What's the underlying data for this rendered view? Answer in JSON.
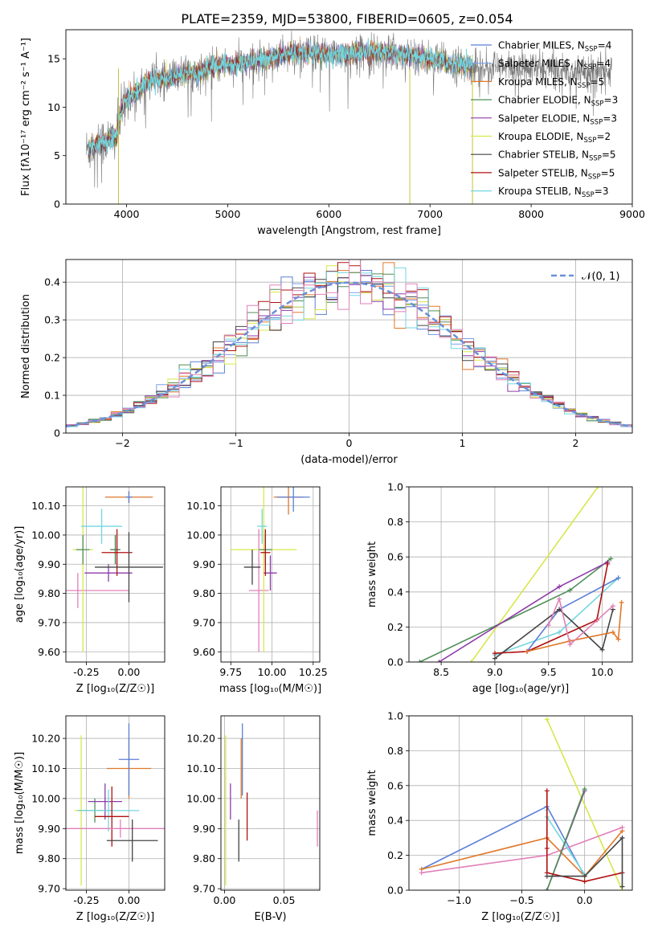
{
  "figure": {
    "title": "PLATE=2359, MJD=53800, FIBERID=0605, z=0.054"
  },
  "colors": {
    "chabrier_miles": "#5b7fd6",
    "salpeter_miles": "#7aa0e8",
    "kroupa_miles": "#e0782a",
    "chabrier_elodie": "#4f8f57",
    "salpeter_elodie": "#8e3ba8",
    "kroupa_elodie": "#d7e84a",
    "chabrier_stelib": "#444444",
    "salpeter_stelib": "#b01010",
    "kroupa_stelib": "#72d6e0",
    "pink": "#e080b8",
    "normal": "#6a90d8"
  },
  "chart_data": [
    {
      "id": "spectrum",
      "type": "line",
      "title": "PLATE=2359, MJD=53800, FIBERID=0605, z=0.054",
      "xlabel": "wavelength [Angstrom, rest frame]",
      "ylabel": "Flux [fλ10⁻¹⁷ erg cm⁻² s⁻¹ A⁻¹]",
      "xlim": [
        3400,
        9000
      ],
      "ylim": [
        0,
        18
      ],
      "xticks": [
        4000,
        5000,
        6000,
        7000,
        8000,
        9000
      ],
      "yticks": [
        0,
        5,
        10,
        15
      ],
      "legend_position": "right",
      "legend": [
        {
          "label": "Chabrier MILES, N",
          "sub": "SSP",
          "eq": "=4",
          "color": "#5b7fd6"
        },
        {
          "label": "Salpeter MILES, N",
          "sub": "SSP",
          "eq": "=4",
          "color": "#7aa0e8"
        },
        {
          "label": "Kroupa MILES, N",
          "sub": "SSP",
          "eq": "=5",
          "color": "#e0782a"
        },
        {
          "label": "Chabrier ELODIE, N",
          "sub": "SSP",
          "eq": "=3",
          "color": "#4f8f57"
        },
        {
          "label": "Salpeter ELODIE, N",
          "sub": "SSP",
          "eq": "=3",
          "color": "#8e3ba8"
        },
        {
          "label": "Kroupa ELODIE, N",
          "sub": "SSP",
          "eq": "=2",
          "color": "#d7e84a"
        },
        {
          "label": "Chabrier STELIB, N",
          "sub": "SSP",
          "eq": "=5",
          "color": "#444444"
        },
        {
          "label": "Salpeter STELIB, N",
          "sub": "SSP",
          "eq": "=5",
          "color": "#b01010"
        },
        {
          "label": "Kroupa STELIB, N",
          "sub": "SSP",
          "eq": "=3",
          "color": "#72d6e0"
        }
      ],
      "continuum": {
        "x": [
          3600,
          3700,
          3800,
          3900,
          3950,
          4000,
          4100,
          4200,
          4300,
          4400,
          4500,
          4600,
          4700,
          4800,
          4900,
          5000,
          5200,
          5400,
          5600,
          5800,
          6000,
          6200,
          6400,
          6600,
          6800,
          7000,
          7200,
          7400
        ],
        "y": [
          5.5,
          6.2,
          6.5,
          7.0,
          9.5,
          10.8,
          11.6,
          12.6,
          13.0,
          12.8,
          13.3,
          13.6,
          13.5,
          14.0,
          14.3,
          14.4,
          14.6,
          15.0,
          15.5,
          15.6,
          15.4,
          15.5,
          15.8,
          15.6,
          15.4,
          15.0,
          14.5,
          14.2
        ]
      },
      "observed_extent": [
        3600,
        8800
      ]
    },
    {
      "id": "residuals",
      "type": "line",
      "xlabel": "(data-model)/error",
      "ylabel": "Normed distribution",
      "xlim": [
        -2.5,
        2.5
      ],
      "ylim": [
        0,
        0.46
      ],
      "xticks": [
        -2,
        -1,
        0,
        1,
        2
      ],
      "yticks": [
        0.0,
        0.1,
        0.2,
        0.3,
        0.4
      ],
      "legend_position": "top-right",
      "legend": [
        {
          "label": "𝒩(0, 1)",
          "color": "#6a90d8"
        }
      ],
      "bin_width": 0.1
    },
    {
      "id": "age_vs_Z",
      "type": "scatter",
      "xlabel": "Z [log₁₀(Z/Z☉)]",
      "ylabel": "age  [log₁₀(age/yr)]",
      "xlim": [
        -0.37,
        0.21
      ],
      "ylim": [
        9.565,
        10.165
      ],
      "xticks": [
        -0.25,
        0.0
      ],
      "yticks": [
        9.6,
        9.7,
        9.8,
        9.9,
        10.0,
        10.1
      ],
      "points": [
        {
          "x": -0.3,
          "y": 9.81,
          "xerr": 0.3,
          "yerr": 0.06,
          "color": "#e080b8"
        },
        {
          "x": -0.27,
          "y": 9.95,
          "xerr": 0.06,
          "yerr": 0.35,
          "color": "#d7e84a"
        },
        {
          "x": -0.27,
          "y": 9.95,
          "xerr": 0.04,
          "yerr": 0.05,
          "color": "#4f8f57"
        },
        {
          "x": -0.16,
          "y": 10.03,
          "xerr": 0.12,
          "yerr": 0.06,
          "color": "#72d6e0"
        },
        {
          "x": -0.12,
          "y": 9.87,
          "xerr": 0.14,
          "yerr": 0.03,
          "color": "#8e3ba8"
        },
        {
          "x": -0.08,
          "y": 9.95,
          "xerr": 0.03,
          "yerr": 0.05,
          "color": "#3c7a43"
        },
        {
          "x": 0.0,
          "y": 10.13,
          "xerr": 0.14,
          "yerr": 0.02,
          "color": "#e0782a"
        },
        {
          "x": 0.0,
          "y": 10.13,
          "xerr": 0.02,
          "yerr": 0.02,
          "color": "#5b7fd6"
        },
        {
          "x": -0.07,
          "y": 9.94,
          "xerr": 0.09,
          "yerr": 0.08,
          "color": "#b01010"
        },
        {
          "x": 0.0,
          "y": 9.89,
          "xerr": 0.2,
          "yerr": 0.12,
          "color": "#444444"
        }
      ]
    },
    {
      "id": "age_vs_mass",
      "type": "scatter",
      "xlabel": "mass [log₁₀(M/M☉)]",
      "ylabel": "",
      "xlim": [
        9.69,
        10.29
      ],
      "ylim": [
        9.565,
        10.165
      ],
      "xticks": [
        9.75,
        10.0,
        10.25
      ],
      "yticks": [
        9.6,
        9.7,
        9.8,
        9.9,
        10.0,
        10.1
      ],
      "points": [
        {
          "x": 9.92,
          "y": 9.81,
          "xerr": 0.06,
          "yerr": 0.21,
          "color": "#e080b8"
        },
        {
          "x": 9.95,
          "y": 9.95,
          "xerr": 0.2,
          "yerr": 0.35,
          "color": "#d7e84a"
        },
        {
          "x": 9.96,
          "y": 9.95,
          "xerr": 0.04,
          "yerr": 0.05,
          "color": "#4f8f57"
        },
        {
          "x": 9.94,
          "y": 10.03,
          "xerr": 0.03,
          "yerr": 0.06,
          "color": "#72d6e0"
        },
        {
          "x": 9.99,
          "y": 9.87,
          "xerr": 0.04,
          "yerr": 0.06,
          "color": "#8e3ba8"
        },
        {
          "x": 10.1,
          "y": 10.13,
          "xerr": 0.09,
          "yerr": 0.06,
          "color": "#e0782a"
        },
        {
          "x": 10.13,
          "y": 10.13,
          "xerr": 0.1,
          "yerr": 0.05,
          "color": "#5b7fd6"
        },
        {
          "x": 9.96,
          "y": 9.94,
          "xerr": 0.03,
          "yerr": 0.08,
          "color": "#b01010"
        },
        {
          "x": 9.88,
          "y": 9.89,
          "xerr": 0.05,
          "yerr": 0.06,
          "color": "#444444"
        }
      ]
    },
    {
      "id": "mass_weight_vs_age",
      "type": "line",
      "xlabel": "age  [log₁₀(age/yr)]",
      "ylabel": "mass weight",
      "xlim": [
        8.2,
        10.28
      ],
      "ylim": [
        0,
        1.0
      ],
      "xticks": [
        8.5,
        9.0,
        9.5,
        10.0
      ],
      "yticks": [
        0.0,
        0.2,
        0.4,
        0.6,
        0.8,
        1.0
      ],
      "series": [
        {
          "color": "#d7e84a",
          "x": [
            8.78,
            9.96
          ],
          "y": [
            0.0,
            1.0
          ]
        },
        {
          "color": "#4f8f57",
          "x": [
            8.3,
            9.7,
            10.08
          ],
          "y": [
            0.0,
            0.41,
            0.59
          ]
        },
        {
          "color": "#8e3ba8",
          "x": [
            8.48,
            9.6,
            10.05
          ],
          "y": [
            0.0,
            0.43,
            0.57
          ]
        },
        {
          "color": "#72d6e0",
          "x": [
            9.0,
            9.6,
            10.15
          ],
          "y": [
            0.04,
            0.17,
            0.48
          ]
        },
        {
          "color": "#5b7fd6",
          "x": [
            9.3,
            9.6,
            10.15
          ],
          "y": [
            0.06,
            0.3,
            0.48
          ]
        },
        {
          "color": "#444444",
          "x": [
            9.0,
            9.6,
            10.0,
            10.1
          ],
          "y": [
            0.02,
            0.3,
            0.07,
            0.3
          ]
        },
        {
          "color": "#b01010",
          "x": [
            9.0,
            9.3,
            9.95,
            10.05
          ],
          "y": [
            0.05,
            0.06,
            0.24,
            0.56
          ]
        },
        {
          "color": "#e0782a",
          "x": [
            9.3,
            9.7,
            10.1,
            10.15,
            10.18
          ],
          "y": [
            0.06,
            0.12,
            0.17,
            0.13,
            0.34
          ]
        },
        {
          "color": "#e080b8",
          "x": [
            9.5,
            9.6,
            9.7,
            10.1
          ],
          "y": [
            0.21,
            0.36,
            0.1,
            0.32
          ]
        }
      ]
    },
    {
      "id": "mass_vs_Z",
      "type": "scatter",
      "xlabel": "Z [log₁₀(Z/Z☉)]",
      "ylabel": "mass [log₁₀(M/M☉)]",
      "xlim": [
        -0.37,
        0.21
      ],
      "ylim": [
        9.695,
        10.275
      ],
      "xticks": [
        -0.25,
        0.0
      ],
      "yticks": [
        9.7,
        9.8,
        9.9,
        10.0,
        10.1,
        10.2
      ],
      "points": [
        {
          "x": -0.28,
          "y": 9.96,
          "xerr": 0.04,
          "yerr": 0.25,
          "color": "#d7e84a"
        },
        {
          "x": -0.2,
          "y": 9.96,
          "xerr": 0.1,
          "yerr": 0.04,
          "color": "#4f8f57"
        },
        {
          "x": -0.14,
          "y": 9.99,
          "xerr": 0.1,
          "yerr": 0.06,
          "color": "#8e3ba8"
        },
        {
          "x": -0.12,
          "y": 9.96,
          "xerr": 0.18,
          "yerr": 0.07,
          "color": "#72d6e0"
        },
        {
          "x": -0.1,
          "y": 9.94,
          "xerr": 0.1,
          "yerr": 0.1,
          "color": "#b01010"
        },
        {
          "x": -0.05,
          "y": 9.9,
          "xerr": 0.35,
          "yerr": 0.03,
          "color": "#e080b8"
        },
        {
          "x": 0.0,
          "y": 10.1,
          "xerr": 0.13,
          "yerr": 0.1,
          "color": "#e0782a"
        },
        {
          "x": 0.0,
          "y": 10.13,
          "xerr": 0.06,
          "yerr": 0.12,
          "color": "#5b7fd6"
        },
        {
          "x": 0.02,
          "y": 9.86,
          "xerr": 0.15,
          "yerr": 0.07,
          "color": "#444444"
        }
      ]
    },
    {
      "id": "mass_vs_EBV",
      "type": "scatter",
      "xlabel": "E(B-V)",
      "ylabel": "",
      "xlim": [
        -0.003,
        0.08
      ],
      "ylim": [
        9.695,
        10.275
      ],
      "xticks": [
        0.0,
        0.05
      ],
      "yticks": [
        9.7,
        9.8,
        9.9,
        10.0,
        10.1,
        10.2
      ],
      "points": [
        {
          "x": 0.001,
          "y": 9.96,
          "yerr": 0.25,
          "color": "#d7e84a"
        },
        {
          "x": 0.005,
          "y": 9.99,
          "yerr": 0.06,
          "color": "#8e3ba8"
        },
        {
          "x": 0.012,
          "y": 9.86,
          "yerr": 0.07,
          "color": "#444444"
        },
        {
          "x": 0.014,
          "y": 10.1,
          "yerr": 0.1,
          "color": "#e0782a"
        },
        {
          "x": 0.015,
          "y": 10.13,
          "yerr": 0.12,
          "color": "#5b7fd6"
        },
        {
          "x": 0.019,
          "y": 9.94,
          "yerr": 0.08,
          "color": "#b01010"
        },
        {
          "x": 0.078,
          "y": 9.9,
          "yerr": 0.06,
          "color": "#e080b8"
        }
      ]
    },
    {
      "id": "mass_weight_vs_Z",
      "type": "line",
      "xlabel": "Z [log₁₀(Z/Z☉)]",
      "ylabel": "mass weight",
      "xlim": [
        -1.4,
        0.38
      ],
      "ylim": [
        0,
        1.0
      ],
      "xticks": [
        -1.0,
        -0.5,
        0.0
      ],
      "yticks": [
        0.0,
        0.2,
        0.4,
        0.6,
        0.8,
        1.0
      ],
      "series": [
        {
          "color": "#d7e84a",
          "x": [
            -0.3,
            0.3
          ],
          "y": [
            0.98,
            0.0
          ]
        },
        {
          "color": "#5b7fd6",
          "x": [
            -1.3,
            -0.3,
            0.0
          ],
          "y": [
            0.12,
            0.48,
            0.08
          ]
        },
        {
          "color": "#e0782a",
          "x": [
            -1.3,
            -0.3,
            0.0,
            0.3
          ],
          "y": [
            0.12,
            0.3,
            0.08,
            0.34
          ]
        },
        {
          "color": "#e080b8",
          "x": [
            -1.3,
            -0.3,
            0.3
          ],
          "y": [
            0.1,
            0.2,
            0.36
          ]
        },
        {
          "color": "#72d6e0",
          "x": [
            -0.3,
            -0.3,
            0.0
          ],
          "y": [
            0.46,
            0.42,
            0.09
          ]
        },
        {
          "color": "#8e3ba8",
          "x": [
            -0.3,
            0.0
          ],
          "y": [
            0.0,
            0.57
          ]
        },
        {
          "color": "#4f8f57",
          "x": [
            -0.3,
            0.0
          ],
          "y": [
            0.0,
            0.58
          ]
        },
        {
          "color": "#b01010",
          "x": [
            -0.3,
            -0.3,
            -0.3,
            0.0,
            0.3
          ],
          "y": [
            0.57,
            0.24,
            0.1,
            0.05,
            0.1
          ]
        },
        {
          "color": "#444444",
          "x": [
            -0.3,
            0.0,
            0.3,
            0.3
          ],
          "y": [
            0.08,
            0.08,
            0.3,
            0.02
          ]
        }
      ]
    }
  ]
}
